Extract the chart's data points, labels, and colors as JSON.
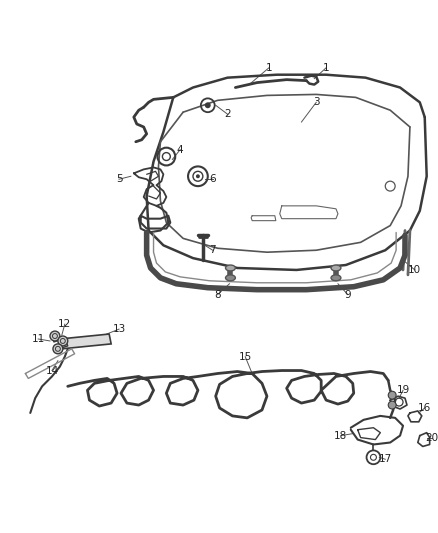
{
  "bg_color": "#ffffff",
  "line_color": "#3a3a3a",
  "fig_width": 4.38,
  "fig_height": 5.33,
  "dpi": 100,
  "label_fs": 7.5,
  "label_color": "#222222"
}
